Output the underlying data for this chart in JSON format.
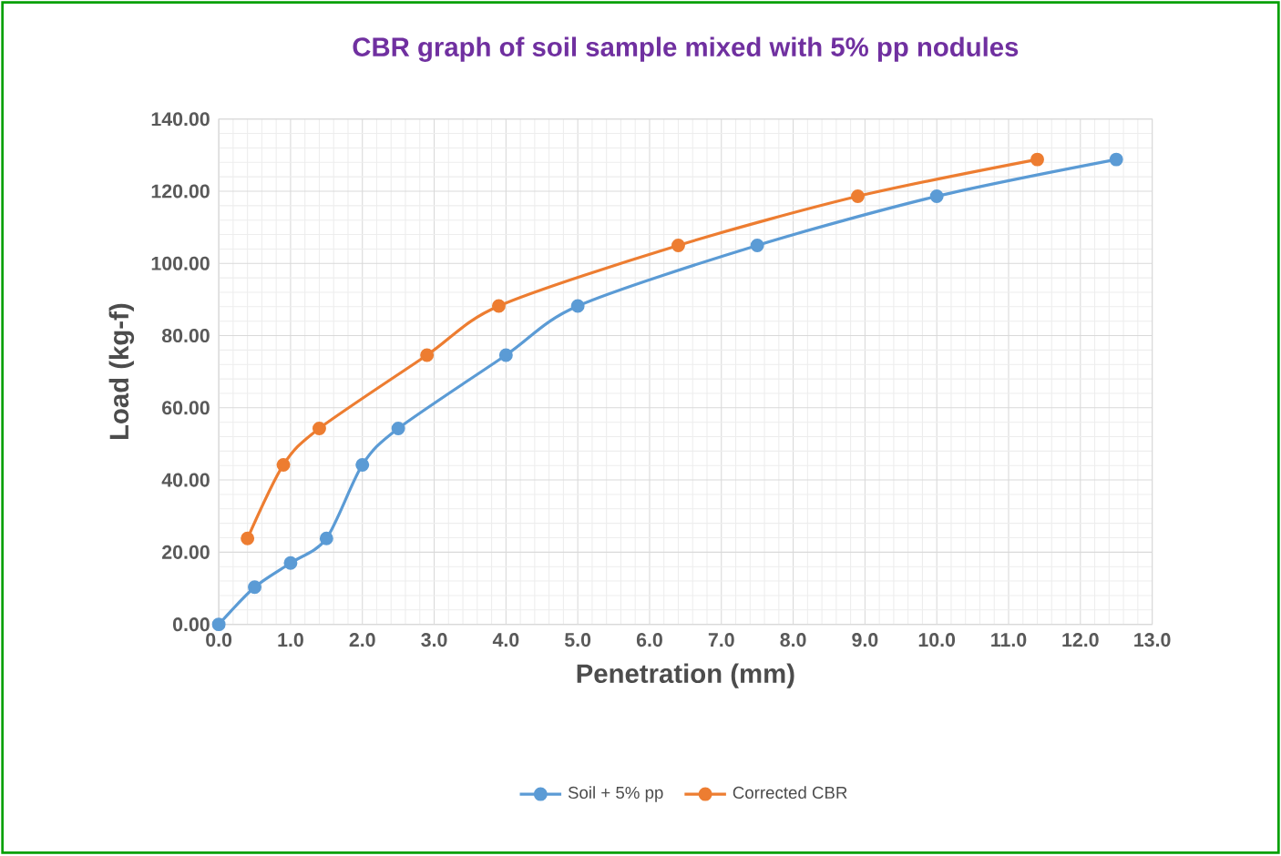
{
  "chart_data": {
    "type": "line",
    "title": "CBR graph of soil sample mixed with 5% pp nodules",
    "xlabel": "Penetration (mm)",
    "ylabel": "Load (kg-f)",
    "series": [
      {
        "name": "Soil + 5% pp",
        "color": "#5b9bd5",
        "x": [
          0,
          0.5,
          1,
          1.5,
          2,
          2.5,
          4,
          5,
          7.5,
          10,
          12.5
        ],
        "values": [
          0,
          10.3,
          17,
          23.8,
          44.2,
          54.3,
          74.6,
          88.2,
          105,
          118.6,
          128.8
        ]
      },
      {
        "name": "Corrected CBR",
        "color": "#ed7d31",
        "x": [
          0.4,
          0.9,
          1.4,
          2.9,
          3.9,
          6.4,
          8.9,
          11.4
        ],
        "values": [
          23.8,
          44.2,
          54.3,
          74.6,
          88.2,
          105,
          118.6,
          128.8
        ]
      }
    ],
    "xlim": [
      0,
      13
    ],
    "ylim": [
      0,
      140
    ],
    "xticks": [
      {
        "value": 0,
        "label": "0.0"
      },
      {
        "value": 1,
        "label": "1.0"
      },
      {
        "value": 2,
        "label": "2.0"
      },
      {
        "value": 3,
        "label": "3.0"
      },
      {
        "value": 4,
        "label": "4.0"
      },
      {
        "value": 5,
        "label": "5.0"
      },
      {
        "value": 6,
        "label": "6.0"
      },
      {
        "value": 7,
        "label": "7.0"
      },
      {
        "value": 8,
        "label": "8.0"
      },
      {
        "value": 9,
        "label": "9.0"
      },
      {
        "value": 10,
        "label": "10.0"
      },
      {
        "value": 11,
        "label": "11.0"
      },
      {
        "value": 12,
        "label": "12.0"
      },
      {
        "value": 13,
        "label": "13.0"
      }
    ],
    "yticks": [
      {
        "value": 0,
        "label": "0.00"
      },
      {
        "value": 20,
        "label": "20.00"
      },
      {
        "value": 40,
        "label": "40.00"
      },
      {
        "value": 60,
        "label": "60.00"
      },
      {
        "value": 80,
        "label": "80.00"
      },
      {
        "value": 100,
        "label": "100.00"
      },
      {
        "value": 120,
        "label": "120.00"
      },
      {
        "value": 140,
        "label": "140.00"
      }
    ],
    "grid": true,
    "legend": "bottom",
    "marker": "circle",
    "line_style": "solid"
  }
}
